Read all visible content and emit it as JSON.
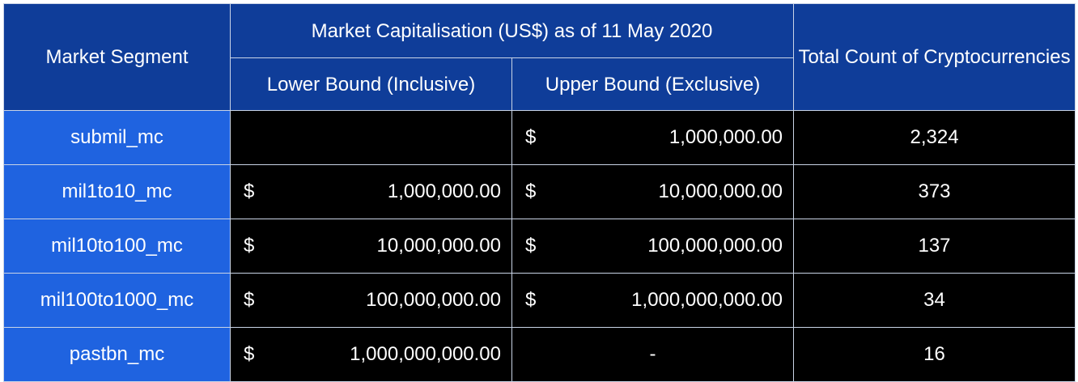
{
  "header": {
    "market_segment": "Market Segment",
    "market_cap": "Market Capitalisation (US$) as of 11 May 2020",
    "lower_bound": "Lower Bound (Inclusive)",
    "upper_bound": "Upper Bound (Exclusive)",
    "total_count": "Total Count of Cryptocurrencies"
  },
  "rows": [
    {
      "segment": "submil_mc",
      "lower_symbol": "",
      "lower_value": "",
      "upper_symbol": "$",
      "upper_value": "1,000,000.00",
      "count": "2,324"
    },
    {
      "segment": "mil1to10_mc",
      "lower_symbol": "$",
      "lower_value": "1,000,000.00",
      "upper_symbol": "$",
      "upper_value": "10,000,000.00",
      "count": "373"
    },
    {
      "segment": "mil10to100_mc",
      "lower_symbol": "$",
      "lower_value": "10,000,000.00",
      "upper_symbol": "$",
      "upper_value": "100,000,000.00",
      "count": "137"
    },
    {
      "segment": "mil100to1000_mc",
      "lower_symbol": "$",
      "lower_value": "100,000,000.00",
      "upper_symbol": "$",
      "upper_value": "1,000,000,000.00",
      "count": "34"
    },
    {
      "segment": "pastbn_mc",
      "lower_symbol": "$",
      "lower_value": "1,000,000,000.00",
      "upper_dash": "-",
      "count": "16"
    }
  ],
  "colors": {
    "header_bg": "#0f3d99",
    "segment_bg": "#1f63e0",
    "data_bg": "#000000",
    "text": "#ffffff"
  }
}
